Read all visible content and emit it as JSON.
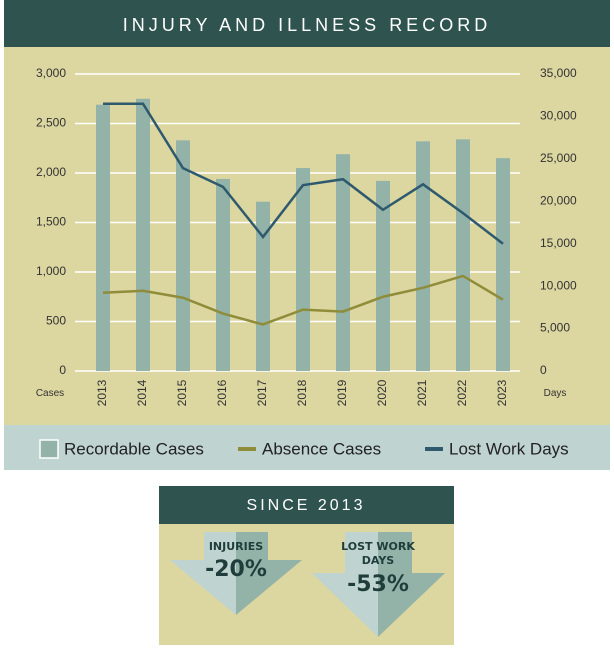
{
  "chart_data": {
    "type": "bar",
    "title": "INJURY AND ILLNESS RECORD",
    "categories": [
      "2013",
      "2014",
      "2015",
      "2016",
      "2017",
      "2018",
      "2019",
      "2020",
      "2021",
      "2022",
      "2023"
    ],
    "ylabel": "Cases",
    "y2label": "Days",
    "ylim": [
      0,
      3000
    ],
    "yticks": [
      0,
      {
        "value": 500,
        "label": "500"
      },
      {
        "value": 1000,
        "label": "1,000"
      },
      {
        "value": 1500,
        "label": "1,500"
      },
      {
        "value": 2000,
        "label": "2,000"
      },
      {
        "value": 2500,
        "label": "2,500"
      },
      {
        "value": 3000,
        "label": "3,000"
      }
    ],
    "y2lim": [
      0,
      35000
    ],
    "y2ticks": [
      0,
      {
        "value": 5000,
        "label": "5,000"
      },
      {
        "value": 10000,
        "label": "10,000"
      },
      {
        "value": 15000,
        "label": "15,000"
      },
      {
        "value": 20000,
        "label": "20,000"
      },
      {
        "value": 25000,
        "label": "25,000"
      },
      {
        "value": 30000,
        "label": "30,000"
      },
      {
        "value": 35000,
        "label": "35,000"
      }
    ],
    "grid": true,
    "series": [
      {
        "name": "Recordable Cases",
        "type": "bar",
        "color": "#93b3a8",
        "values": [
          2690,
          2750,
          2330,
          1940,
          1710,
          2050,
          2190,
          1920,
          2320,
          2340,
          2150
        ]
      },
      {
        "name": "Absence Cases",
        "type": "line",
        "color": "#8f8c3a",
        "values": [
          790,
          810,
          740,
          580,
          470,
          620,
          600,
          750,
          840,
          960,
          720
        ]
      },
      {
        "name": "Lost Work Days",
        "type": "line",
        "axis": "y2",
        "color": "#2f5a6e",
        "values": [
          31500,
          31500,
          23900,
          21700,
          15800,
          21900,
          22600,
          19000,
          22000,
          18600,
          15000
        ]
      }
    ]
  },
  "summary": {
    "title": "SINCE 2013",
    "items": [
      {
        "label": "INJURIES",
        "value": "-20%"
      },
      {
        "label": "LOST WORK DAYS",
        "value": "-53%"
      }
    ]
  }
}
